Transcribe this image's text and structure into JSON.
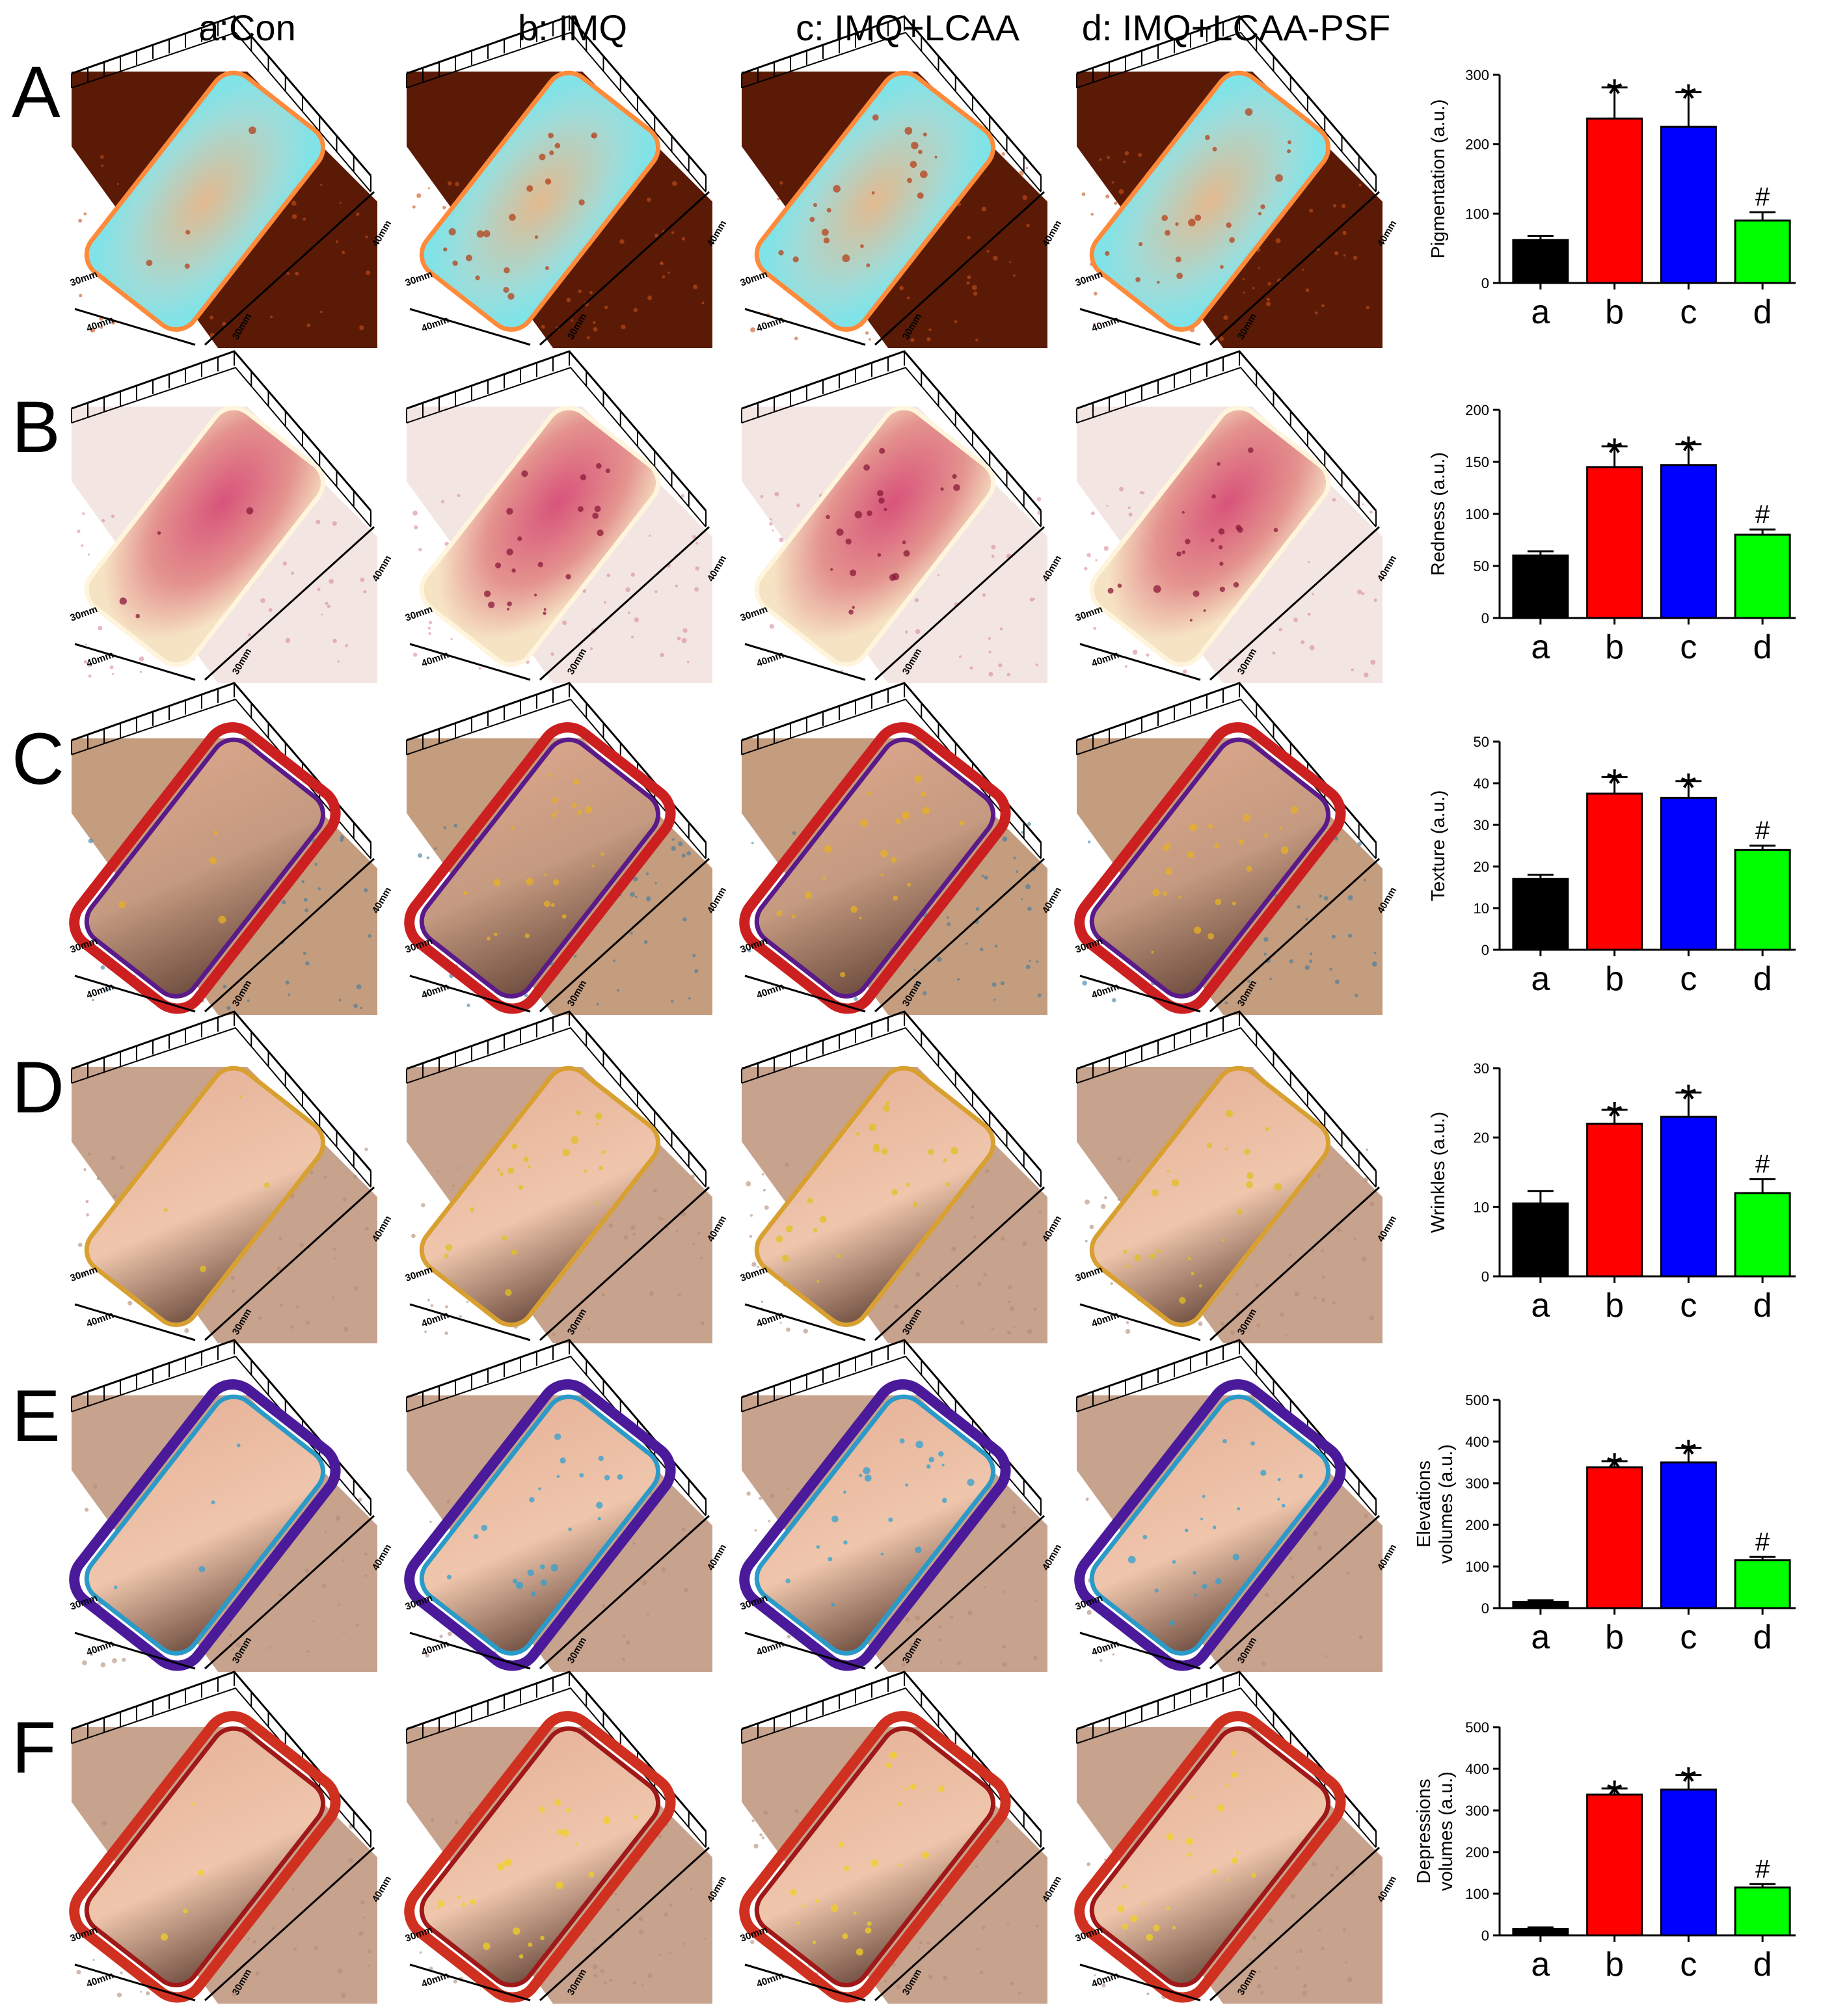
{
  "column_labels": [
    "a:Con",
    "b: IMQ",
    "c: IMQ+LCAA",
    "d: IMQ+LCAA-PSF"
  ],
  "scale_labels": {
    "left_near": "30mm",
    "left_far": "40mm",
    "bottom_left": "30mm",
    "bottom_right": "40mm"
  },
  "rows": [
    {
      "label": "A",
      "scheme": "pigmentation"
    },
    {
      "label": "B",
      "scheme": "redness"
    },
    {
      "label": "C",
      "scheme": "texture"
    },
    {
      "label": "D",
      "scheme": "wrinkles"
    },
    {
      "label": "E",
      "scheme": "elevations"
    },
    {
      "label": "F",
      "scheme": "depressions"
    }
  ],
  "chart_data": [
    {
      "type": "bar",
      "panel": "A",
      "ylabel": [
        "Pigmentation (a.u.)"
      ],
      "categories": [
        "a",
        "b",
        "c",
        "d"
      ],
      "values": [
        62,
        237,
        225,
        90
      ],
      "errors": [
        6,
        45,
        50,
        12
      ],
      "ylim": [
        0,
        300
      ],
      "yticks": [
        0,
        100,
        200,
        300
      ],
      "annotations": [
        "",
        "*",
        "*",
        "#"
      ],
      "colors": [
        "#000000",
        "#ff0000",
        "#0000ff",
        "#00ff00"
      ]
    },
    {
      "type": "bar",
      "panel": "B",
      "ylabel": [
        "Redness (a.u.)"
      ],
      "categories": [
        "a",
        "b",
        "c",
        "d"
      ],
      "values": [
        60,
        145,
        147,
        80
      ],
      "errors": [
        4,
        20,
        20,
        5
      ],
      "ylim": [
        0,
        200
      ],
      "yticks": [
        0,
        50,
        100,
        150,
        200
      ],
      "annotations": [
        "",
        "*",
        "*",
        "#"
      ],
      "colors": [
        "#000000",
        "#ff0000",
        "#0000ff",
        "#00ff00"
      ]
    },
    {
      "type": "bar",
      "panel": "C",
      "ylabel": [
        "Texture (a.u.)"
      ],
      "categories": [
        "a",
        "b",
        "c",
        "d"
      ],
      "values": [
        17,
        37.5,
        36.5,
        24
      ],
      "errors": [
        1,
        4,
        4,
        1
      ],
      "ylim": [
        0,
        50
      ],
      "yticks": [
        0,
        10,
        20,
        30,
        40,
        50
      ],
      "annotations": [
        "",
        "*",
        "*",
        "#"
      ],
      "colors": [
        "#000000",
        "#ff0000",
        "#0000ff",
        "#00ff00"
      ]
    },
    {
      "type": "bar",
      "panel": "D",
      "ylabel": [
        "Wrinkles (a.u.)"
      ],
      "categories": [
        "a",
        "b",
        "c",
        "d"
      ],
      "values": [
        10.5,
        22,
        23,
        12
      ],
      "errors": [
        1.8,
        2,
        3.5,
        2
      ],
      "ylim": [
        0,
        30
      ],
      "yticks": [
        0,
        10,
        20,
        30
      ],
      "annotations": [
        "",
        "*",
        "*",
        "#"
      ],
      "colors": [
        "#000000",
        "#ff0000",
        "#0000ff",
        "#00ff00"
      ]
    },
    {
      "type": "bar",
      "panel": "E",
      "ylabel": [
        "Elevations",
        "volumes (a.u.)"
      ],
      "categories": [
        "a",
        "b",
        "c",
        "d"
      ],
      "values": [
        15,
        338,
        350,
        115
      ],
      "errors": [
        4,
        15,
        35,
        8
      ],
      "ylim": [
        0,
        500
      ],
      "yticks": [
        0,
        100,
        200,
        300,
        400,
        500
      ],
      "annotations": [
        "",
        "*",
        "*",
        "#"
      ],
      "colors": [
        "#000000",
        "#ff0000",
        "#0000ff",
        "#00ff00"
      ]
    },
    {
      "type": "bar",
      "panel": "F",
      "ylabel": [
        "Depressions",
        "volumes (a.u.)"
      ],
      "categories": [
        "a",
        "b",
        "c",
        "d"
      ],
      "values": [
        15,
        338,
        350,
        115
      ],
      "errors": [
        4,
        15,
        35,
        8
      ],
      "ylim": [
        0,
        500
      ],
      "yticks": [
        0,
        100,
        200,
        300,
        400,
        500
      ],
      "annotations": [
        "",
        "*",
        "*",
        "#"
      ],
      "colors": [
        "#000000",
        "#ff0000",
        "#0000ff",
        "#00ff00"
      ]
    }
  ]
}
